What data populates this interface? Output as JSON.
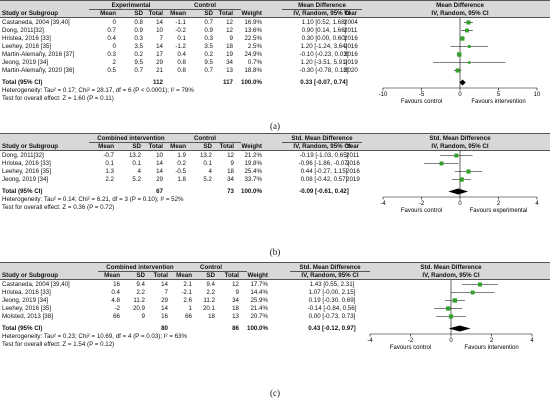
{
  "panels": [
    {
      "id": "a",
      "group1_title": "Experimental",
      "group2_title": "Control",
      "col_study": "Study or Subgroup",
      "col_mean": "Mean",
      "col_sd": "SD",
      "col_total": "Total",
      "col_weight": "Weight",
      "col_ci": "IV, Random, 95% CI",
      "col_year": "Year",
      "effect_title": "Mean Difference",
      "plot_title": "Mean Difference",
      "plot_subtitle": "IV, Random, 95% CI",
      "rows": [
        {
          "study": "Castaneda, 2004 [39,40]",
          "m1": "0",
          "sd1": "0.8",
          "n1": "14",
          "m2": "-1.1",
          "sd2": "0.7",
          "n2": "12",
          "w": "16.9%",
          "ci": "1.10 [0.52, 1.68]",
          "year": "2004"
        },
        {
          "study": "Dong, 2011[32]",
          "m1": "0.7",
          "sd1": "0.9",
          "n1": "10",
          "m2": "-0.2",
          "sd2": "0.9",
          "n2": "12",
          "w": "13.6%",
          "ci": "0.90 [0.14, 1.66]",
          "year": "2011"
        },
        {
          "study": "Hristea, 2016 [33]",
          "m1": "0.4",
          "sd1": "0.3",
          "n1": "7",
          "m2": "0.1",
          "sd2": "0.3",
          "n2": "9",
          "w": "22.5%",
          "ci": "0.30 [0.00, 0.60]",
          "year": "2016"
        },
        {
          "study": "Leehey, 2016 [35]",
          "m1": "0",
          "sd1": "3.5",
          "n1": "14",
          "m2": "-1.2",
          "sd2": "3.5",
          "n2": "18",
          "w": "2.5%",
          "ci": "1.20 [-1.24, 3.64]",
          "year": "2016"
        },
        {
          "study": "Martin-Alemañy, 2016 [37]",
          "m1": "0.3",
          "sd1": "0.2",
          "n1": "17",
          "m2": "0.4",
          "sd2": "0.2",
          "n2": "19",
          "w": "24.9%",
          "ci": "-0.10 [-0.23, 0.03]",
          "year": "2016"
        },
        {
          "study": "Jeong, 2019 [34]",
          "m1": "2",
          "sd1": "9.5",
          "n1": "29",
          "m2": "0.8",
          "sd2": "9.5",
          "n2": "34",
          "w": "0.7%",
          "ci": "1.20 [-3.51, 5.91]",
          "year": "2019"
        },
        {
          "study": "Martin-Alemañy, 2020 [36]",
          "m1": "0.5",
          "sd1": "0.7",
          "n1": "21",
          "m2": "0.8",
          "sd2": "0.7",
          "n2": "13",
          "w": "18.8%",
          "ci": "-0.30 [-0.78, 0.18]",
          "year": "2020"
        }
      ],
      "total_label": "Total (95% CI)",
      "total_n1": "112",
      "total_n2": "117",
      "total_w": "100.0%",
      "total_ci": "0.33 [-0.07, 0.74]",
      "heterogeneity": "Heterogeneity: Tau² = 0.17; Chi² = 28.17, df = 6 (P < 0.0001); I² = 79%",
      "overall_test": "Test for overall effect: Z = 1.60 (P = 0.11)",
      "fav_left": "Favours control",
      "fav_right": "Favours intervention",
      "caption": "(a)"
    },
    {
      "id": "b",
      "group1_title": "Combined intervention",
      "group2_title": "Control",
      "col_study": "Study or Subgroup",
      "col_mean": "Mean",
      "col_sd": "SD",
      "col_total": "Total",
      "col_weight": "Weight",
      "col_ci": "IV, Random, 95% CI",
      "col_year": "Year",
      "effect_title": "Std. Mean Difference",
      "plot_title": "Std. Mean Difference",
      "plot_subtitle": "IV, Random, 95% CI",
      "rows": [
        {
          "study": "Dong, 2011[32]",
          "m1": "-0.7",
          "sd1": "13.2",
          "n1": "10",
          "m2": "1.9",
          "sd2": "13.2",
          "n2": "12",
          "w": "21.2%",
          "ci": "-0.19 [-1.03, 0.65]",
          "year": "2011"
        },
        {
          "study": "Hristea, 2016 [33]",
          "m1": "0.1",
          "sd1": "0.1",
          "n1": "14",
          "m2": "0.2",
          "sd2": "0.1",
          "n2": "9",
          "w": "19.8%",
          "ci": "-0.96 [-1.86, -0.07]",
          "year": "2016"
        },
        {
          "study": "Leehey, 2016 [35]",
          "m1": "1.3",
          "sd1": "4",
          "n1": "14",
          "m2": "-0.5",
          "sd2": "4",
          "n2": "18",
          "w": "25.4%",
          "ci": "0.44 [-0.27, 1.15]",
          "year": "2016"
        },
        {
          "study": "Jeong, 2019 [34]",
          "m1": "2.2",
          "sd1": "5.2",
          "n1": "29",
          "m2": "1.8",
          "sd2": "5.2",
          "n2": "34",
          "w": "33.7%",
          "ci": "0.08 [-0.42, 0.57]",
          "year": "2019"
        }
      ],
      "total_label": "Total (95% CI)",
      "total_n1": "67",
      "total_n2": "73",
      "total_w": "100.0%",
      "total_ci": "-0.09 [-0.61, 0.42]",
      "heterogeneity": "Heterogeneity: Tau² = 0.14; Chi² = 6.21, df = 3 (P = 0.10); I² = 52%",
      "overall_test": "Test for overall effect: Z = 0.36 (P = 0.72)",
      "fav_left": "Favours control",
      "fav_right": "Favours experimental",
      "caption": "(b)"
    },
    {
      "id": "c",
      "group1_title": "Combined intervention",
      "group2_title": "Control",
      "col_study": "Study or Subgroup",
      "col_mean": "Mean",
      "col_sd": "SD",
      "col_total": "Total",
      "col_weight": "Weight",
      "col_ci": "IV, Random, 95% CI",
      "effect_title": "Std. Mean Difference",
      "plot_title": "Std. Mean Difference",
      "plot_subtitle": "IV, Random, 95% CI",
      "rows": [
        {
          "study": "Castaneda, 2004 [39,40]",
          "m1": "16",
          "sd1": "9.4",
          "n1": "14",
          "m2": "2.1",
          "sd2": "9.4",
          "n2": "12",
          "w": "17.7%",
          "ci": "1.43 [0.55, 2.31]"
        },
        {
          "study": "Hristea, 2016 [33]",
          "m1": "0.4",
          "sd1": "2.2",
          "n1": "7",
          "m2": "-2.1",
          "sd2": "2.2",
          "n2": "9",
          "w": "14.4%",
          "ci": "1.07 [-0.00, 2.15]"
        },
        {
          "study": "Jeong, 2019 [34]",
          "m1": "4.8",
          "sd1": "11.2",
          "n1": "29",
          "m2": "2.6",
          "sd2": "11.2",
          "n2": "34",
          "w": "25.9%",
          "ci": "0.19 [-0.30, 0.69]"
        },
        {
          "study": "Leehey, 2016 [35]",
          "m1": "-2",
          "sd1": "20.9",
          "n1": "14",
          "m2": "1",
          "sd2": "20.1",
          "n2": "18",
          "w": "21.4%",
          "ci": "-0.14 [-0.84, 0.56]"
        },
        {
          "study": "Molsted, 2013 [38]",
          "m1": "66",
          "sd1": "9",
          "n1": "16",
          "m2": "66",
          "sd2": "18",
          "n2": "13",
          "w": "20.7%",
          "ci": "0.00 [-0.73, 0.73]"
        }
      ],
      "total_label": "Total (95% CI)",
      "total_n1": "80",
      "total_n2": "86",
      "total_w": "100.0%",
      "total_ci": "0.43 [-0.12, 0.97]",
      "heterogeneity": "Heterogeneity: Tau² = 0.23; Chi² = 10.69, df = 4 (P = 0.03); I² = 63%",
      "overall_test": "Test for overall effect: Z = 1.54 (P = 0.12)",
      "fav_left": "Favours control",
      "fav_right": "Favours intervention",
      "caption": "(c)"
    }
  ],
  "chart_data": [
    {
      "type": "scatter",
      "subtype": "forest-plot",
      "title": "Mean Difference",
      "subtitle": "IV, Random, 95% CI",
      "xlim": [
        -10,
        10
      ],
      "xticks": [
        -10,
        -5,
        0,
        5,
        10
      ],
      "xlabel_left": "Favours control",
      "xlabel_right": "Favours intervention",
      "studies": [
        "Castaneda, 2004 [39,40]",
        "Dong, 2011[32]",
        "Hristea, 2016 [33]",
        "Leehey, 2016 [35]",
        "Martin-Alemañy, 2016 [37]",
        "Jeong, 2019 [34]",
        "Martin-Alemañy, 2020 [36]"
      ],
      "estimate": [
        1.1,
        0.9,
        0.3,
        1.2,
        -0.1,
        1.2,
        -0.3
      ],
      "ci_low": [
        0.52,
        0.14,
        0.0,
        -1.24,
        -0.23,
        -3.51,
        -0.78
      ],
      "ci_high": [
        1.68,
        1.66,
        0.6,
        3.64,
        0.03,
        5.91,
        0.18
      ],
      "weight": [
        16.9,
        13.6,
        22.5,
        2.5,
        24.9,
        0.7,
        18.8
      ],
      "pooled": {
        "estimate": 0.33,
        "ci_low": -0.07,
        "ci_high": 0.74
      },
      "marker_color": "#33a02c"
    },
    {
      "type": "scatter",
      "subtype": "forest-plot",
      "title": "Std. Mean Difference",
      "subtitle": "IV, Random, 95% CI",
      "xlim": [
        -4,
        4
      ],
      "xticks": [
        -4,
        -2,
        0,
        2,
        4
      ],
      "xlabel_left": "Favours control",
      "xlabel_right": "Favours experimental",
      "studies": [
        "Dong, 2011[32]",
        "Hristea, 2016 [33]",
        "Leehey, 2016 [35]",
        "Jeong, 2019 [34]"
      ],
      "estimate": [
        -0.19,
        -0.96,
        0.44,
        0.08
      ],
      "ci_low": [
        -1.03,
        -1.86,
        -0.27,
        -0.42
      ],
      "ci_high": [
        0.65,
        -0.07,
        1.15,
        0.57
      ],
      "weight": [
        21.2,
        19.8,
        25.4,
        33.7
      ],
      "pooled": {
        "estimate": -0.09,
        "ci_low": -0.61,
        "ci_high": 0.42
      },
      "marker_color": "#33a02c"
    },
    {
      "type": "scatter",
      "subtype": "forest-plot",
      "title": "Std. Mean Difference",
      "subtitle": "IV, Random, 95% CI",
      "xlim": [
        -4,
        4
      ],
      "xticks": [
        -4,
        -2,
        0,
        2,
        4
      ],
      "xlabel_left": "Favours control",
      "xlabel_right": "Favours intervention",
      "studies": [
        "Castaneda, 2004 [39,40]",
        "Hristea, 2016 [33]",
        "Jeong, 2019 [34]",
        "Leehey, 2016 [35]",
        "Molsted, 2013 [38]"
      ],
      "estimate": [
        1.43,
        1.07,
        0.19,
        -0.14,
        0.0
      ],
      "ci_low": [
        0.55,
        -0.0,
        -0.3,
        -0.84,
        -0.73
      ],
      "ci_high": [
        2.31,
        2.15,
        0.69,
        0.56,
        0.73
      ],
      "weight": [
        17.7,
        14.4,
        25.9,
        21.4,
        20.7
      ],
      "pooled": {
        "estimate": 0.43,
        "ci_low": -0.12,
        "ci_high": 0.97
      },
      "marker_color": "#33a02c"
    }
  ]
}
